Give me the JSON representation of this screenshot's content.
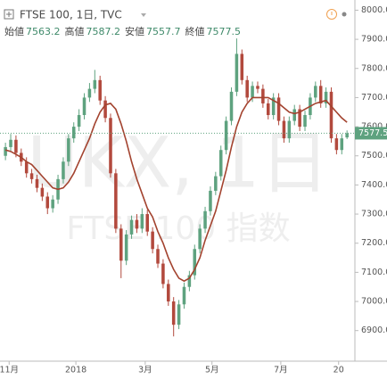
{
  "chart_data": {
    "type": "candlestick",
    "title": "FTSE 100, 1日, TVC",
    "ohlc_labels": [
      "始値",
      "高値",
      "安値",
      "終値"
    ],
    "watermark": "UKX, 1日",
    "watermark_subtitle": "FTSE 100 指数",
    "up_color": "#5ea27f",
    "down_color": "#b2493d",
    "xlim": [
      -0.7,
      66.5
    ],
    "xticks": [
      {
        "value": 0.7,
        "label": "11月"
      },
      {
        "value": 13.4,
        "label": "2018"
      },
      {
        "value": 26.6,
        "label": "3月"
      },
      {
        "value": 39.3,
        "label": "5月"
      },
      {
        "value": 52.4,
        "label": "7月"
      },
      {
        "value": 63.4,
        "label": "20"
      }
    ],
    "ylim": [
      6795,
      8035
    ],
    "yticks": [
      {
        "value": 6900,
        "label": "6900.0"
      },
      {
        "value": 7000,
        "label": "7000.0"
      },
      {
        "value": 7100,
        "label": "7100.0"
      },
      {
        "value": 7200,
        "label": "7200.0"
      },
      {
        "value": 7300,
        "label": "7300.0"
      },
      {
        "value": 7400,
        "label": "7400.0"
      },
      {
        "value": 7500,
        "label": "7500.0"
      },
      {
        "value": 7600,
        "label": "7600.0"
      },
      {
        "value": 7700,
        "label": "7700.0"
      },
      {
        "value": 7800,
        "label": "7800.0"
      },
      {
        "value": 7900,
        "label": "7900.0"
      },
      {
        "value": 8000,
        "label": "8000.0"
      }
    ],
    "grid": false,
    "open": [
      7500,
      7530,
      7555,
      7510,
      7480,
      7440,
      7420,
      7390,
      7360,
      7320,
      7350,
      7420,
      7480,
      7560,
      7600,
      7640,
      7700,
      7730,
      7760,
      7690,
      7630,
      7440,
      7250,
      7140,
      7230,
      7280,
      7250,
      7300,
      7240,
      7180,
      7130,
      7060,
      7000,
      6920,
      6990,
      7050,
      7090,
      7180,
      7250,
      7310,
      7380,
      7430,
      7520,
      7620,
      7720,
      7850,
      7760,
      7700,
      7740,
      7730,
      7680,
      7640,
      7700,
      7620,
      7560,
      7620,
      7660,
      7600,
      7640,
      7700,
      7740,
      7680,
      7720,
      7560,
      7520,
      7563.2
    ],
    "high": [
      7545,
      7575,
      7570,
      7525,
      7495,
      7455,
      7435,
      7405,
      7375,
      7365,
      7435,
      7495,
      7575,
      7615,
      7660,
      7715,
      7750,
      7795,
      7775,
      7705,
      7645,
      7455,
      7265,
      7245,
      7295,
      7300,
      7320,
      7315,
      7255,
      7195,
      7145,
      7075,
      7015,
      7005,
      7065,
      7105,
      7195,
      7265,
      7325,
      7395,
      7445,
      7535,
      7635,
      7735,
      7903,
      7865,
      7775,
      7755,
      7755,
      7745,
      7695,
      7715,
      7715,
      7635,
      7635,
      7675,
      7675,
      7655,
      7715,
      7755,
      7760,
      7735,
      7735,
      7575,
      7575,
      7587.2
    ],
    "low": [
      7485,
      7515,
      7495,
      7465,
      7425,
      7405,
      7375,
      7345,
      7300,
      7305,
      7335,
      7405,
      7465,
      7545,
      7585,
      7625,
      7685,
      7715,
      7675,
      7615,
      7425,
      7235,
      7080,
      7125,
      7215,
      7235,
      7235,
      7225,
      7165,
      7115,
      7045,
      6985,
      6880,
      6905,
      6975,
      7035,
      7075,
      7165,
      7235,
      7295,
      7365,
      7415,
      7505,
      7605,
      7705,
      7745,
      7685,
      7685,
      7715,
      7665,
      7625,
      7625,
      7605,
      7545,
      7545,
      7605,
      7585,
      7585,
      7625,
      7685,
      7665,
      7665,
      7545,
      7505,
      7505,
      7557.7
    ],
    "close": [
      7530,
      7555,
      7510,
      7480,
      7440,
      7420,
      7390,
      7360,
      7320,
      7350,
      7420,
      7480,
      7560,
      7600,
      7640,
      7700,
      7730,
      7760,
      7690,
      7630,
      7440,
      7250,
      7140,
      7230,
      7280,
      7250,
      7300,
      7240,
      7180,
      7130,
      7060,
      7000,
      6920,
      6990,
      7050,
      7090,
      7180,
      7250,
      7310,
      7380,
      7430,
      7520,
      7620,
      7720,
      7850,
      7760,
      7700,
      7740,
      7730,
      7680,
      7640,
      7700,
      7620,
      7560,
      7620,
      7660,
      7600,
      7640,
      7700,
      7740,
      7680,
      7720,
      7560,
      7520,
      7560,
      7577.5
    ],
    "ma": {
      "color": "#a3432f",
      "values": [
        7520,
        7515,
        7505,
        7495,
        7480,
        7470,
        7450,
        7430,
        7410,
        7390,
        7385,
        7390,
        7410,
        7440,
        7480,
        7520,
        7560,
        7610,
        7650,
        7675,
        7680,
        7660,
        7610,
        7550,
        7480,
        7420,
        7370,
        7320,
        7290,
        7240,
        7200,
        7150,
        7110,
        7080,
        7070,
        7080,
        7110,
        7150,
        7210,
        7260,
        7310,
        7380,
        7450,
        7530,
        7600,
        7650,
        7680,
        7700,
        7700,
        7700,
        7700,
        7690,
        7680,
        7665,
        7650,
        7645,
        7650,
        7660,
        7670,
        7680,
        7685,
        7690,
        7670,
        7650,
        7630,
        7615
      ]
    }
  }
}
